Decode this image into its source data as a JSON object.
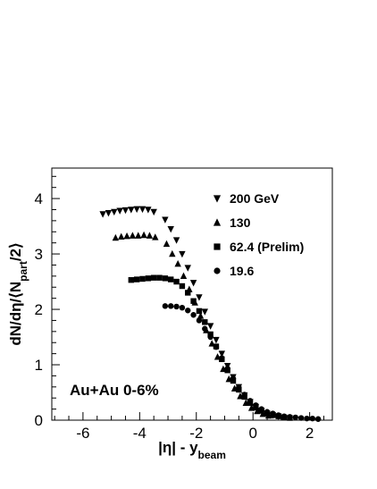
{
  "chart_data": {
    "type": "scatter",
    "xlabel": "|η| - y_beam",
    "ylabel": "dN/dη/⟨N_part/2⟩",
    "xlim": [
      -7.1,
      2.8
    ],
    "ylim": [
      0,
      4.55
    ],
    "x_ticks": [
      -6,
      -4,
      -2,
      0,
      2
    ],
    "y_ticks": [
      0,
      1,
      2,
      3,
      4
    ],
    "legend_position": "top-right",
    "annotation": "Au+Au 0-6%",
    "series": [
      {
        "name": "200 GeV",
        "marker": "triangle-down",
        "x": [
          -5.3,
          -5.1,
          -4.9,
          -4.7,
          -4.5,
          -4.3,
          -4.1,
          -3.9,
          -3.7,
          -3.5,
          -3.1,
          -2.9,
          -2.7,
          -2.5,
          -2.3,
          -2.1,
          -1.9,
          -1.7,
          -1.5,
          -1.3,
          -1.1,
          -0.9,
          -0.7,
          -0.5,
          -0.3,
          -0.1,
          0.1,
          0.3,
          0.5,
          0.7,
          0.9
        ],
        "y": [
          3.72,
          3.74,
          3.76,
          3.78,
          3.79,
          3.8,
          3.81,
          3.81,
          3.8,
          3.76,
          3.62,
          3.45,
          3.25,
          3.0,
          2.75,
          2.48,
          2.22,
          1.96,
          1.7,
          1.45,
          1.2,
          0.98,
          0.78,
          0.6,
          0.45,
          0.33,
          0.24,
          0.17,
          0.12,
          0.09,
          0.07
        ]
      },
      {
        "name": "130",
        "marker": "triangle-up",
        "x": [
          -4.85,
          -4.65,
          -4.45,
          -4.25,
          -4.05,
          -3.85,
          -3.65,
          -3.45,
          -3.05,
          -2.85,
          -2.65,
          -2.45,
          -2.25,
          -2.05,
          -1.85,
          -1.65,
          -1.45,
          -1.25,
          -1.05,
          -0.85,
          -0.65,
          -0.45,
          -0.25,
          -0.05,
          0.15,
          0.35,
          0.55
        ],
        "y": [
          3.29,
          3.31,
          3.32,
          3.33,
          3.33,
          3.34,
          3.33,
          3.3,
          3.18,
          3.0,
          2.82,
          2.6,
          2.36,
          2.12,
          1.88,
          1.62,
          1.38,
          1.14,
          0.92,
          0.74,
          0.57,
          0.43,
          0.31,
          0.22,
          0.16,
          0.11,
          0.08
        ]
      },
      {
        "name": "62.4  (Prelim)",
        "marker": "square",
        "x": [
          -4.3,
          -4.1,
          -3.9,
          -3.7,
          -3.5,
          -3.3,
          -3.1,
          -2.9,
          -2.7,
          -2.5,
          -2.3,
          -2.1,
          -1.9,
          -1.7,
          -1.5,
          -1.3,
          -1.1,
          -0.9,
          -0.7,
          -0.5,
          -0.3,
          -0.1,
          0.1,
          0.3,
          0.5,
          0.7,
          0.9,
          1.1,
          1.3
        ],
        "y": [
          2.53,
          2.54,
          2.55,
          2.56,
          2.57,
          2.57,
          2.56,
          2.54,
          2.5,
          2.42,
          2.3,
          2.15,
          1.97,
          1.77,
          1.55,
          1.33,
          1.1,
          0.9,
          0.71,
          0.55,
          0.42,
          0.31,
          0.23,
          0.17,
          0.12,
          0.09,
          0.07,
          0.05,
          0.04
        ]
      },
      {
        "name": "19.6",
        "marker": "circle",
        "x": [
          -3.1,
          -2.9,
          -2.7,
          -2.5,
          -2.3,
          -2.1,
          -1.9,
          -1.7,
          -1.5,
          -1.3,
          -1.1,
          -0.9,
          -0.7,
          -0.5,
          -0.3,
          -0.1,
          0.1,
          0.3,
          0.5,
          0.7,
          0.9,
          1.1,
          1.3,
          1.5,
          1.7,
          1.9,
          2.1,
          2.3
        ],
        "y": [
          2.06,
          2.06,
          2.05,
          2.03,
          1.98,
          1.9,
          1.8,
          1.65,
          1.5,
          1.32,
          1.12,
          0.93,
          0.75,
          0.59,
          0.46,
          0.35,
          0.27,
          0.2,
          0.15,
          0.12,
          0.09,
          0.07,
          0.06,
          0.05,
          0.04,
          0.03,
          0.03,
          0.02
        ]
      }
    ]
  }
}
